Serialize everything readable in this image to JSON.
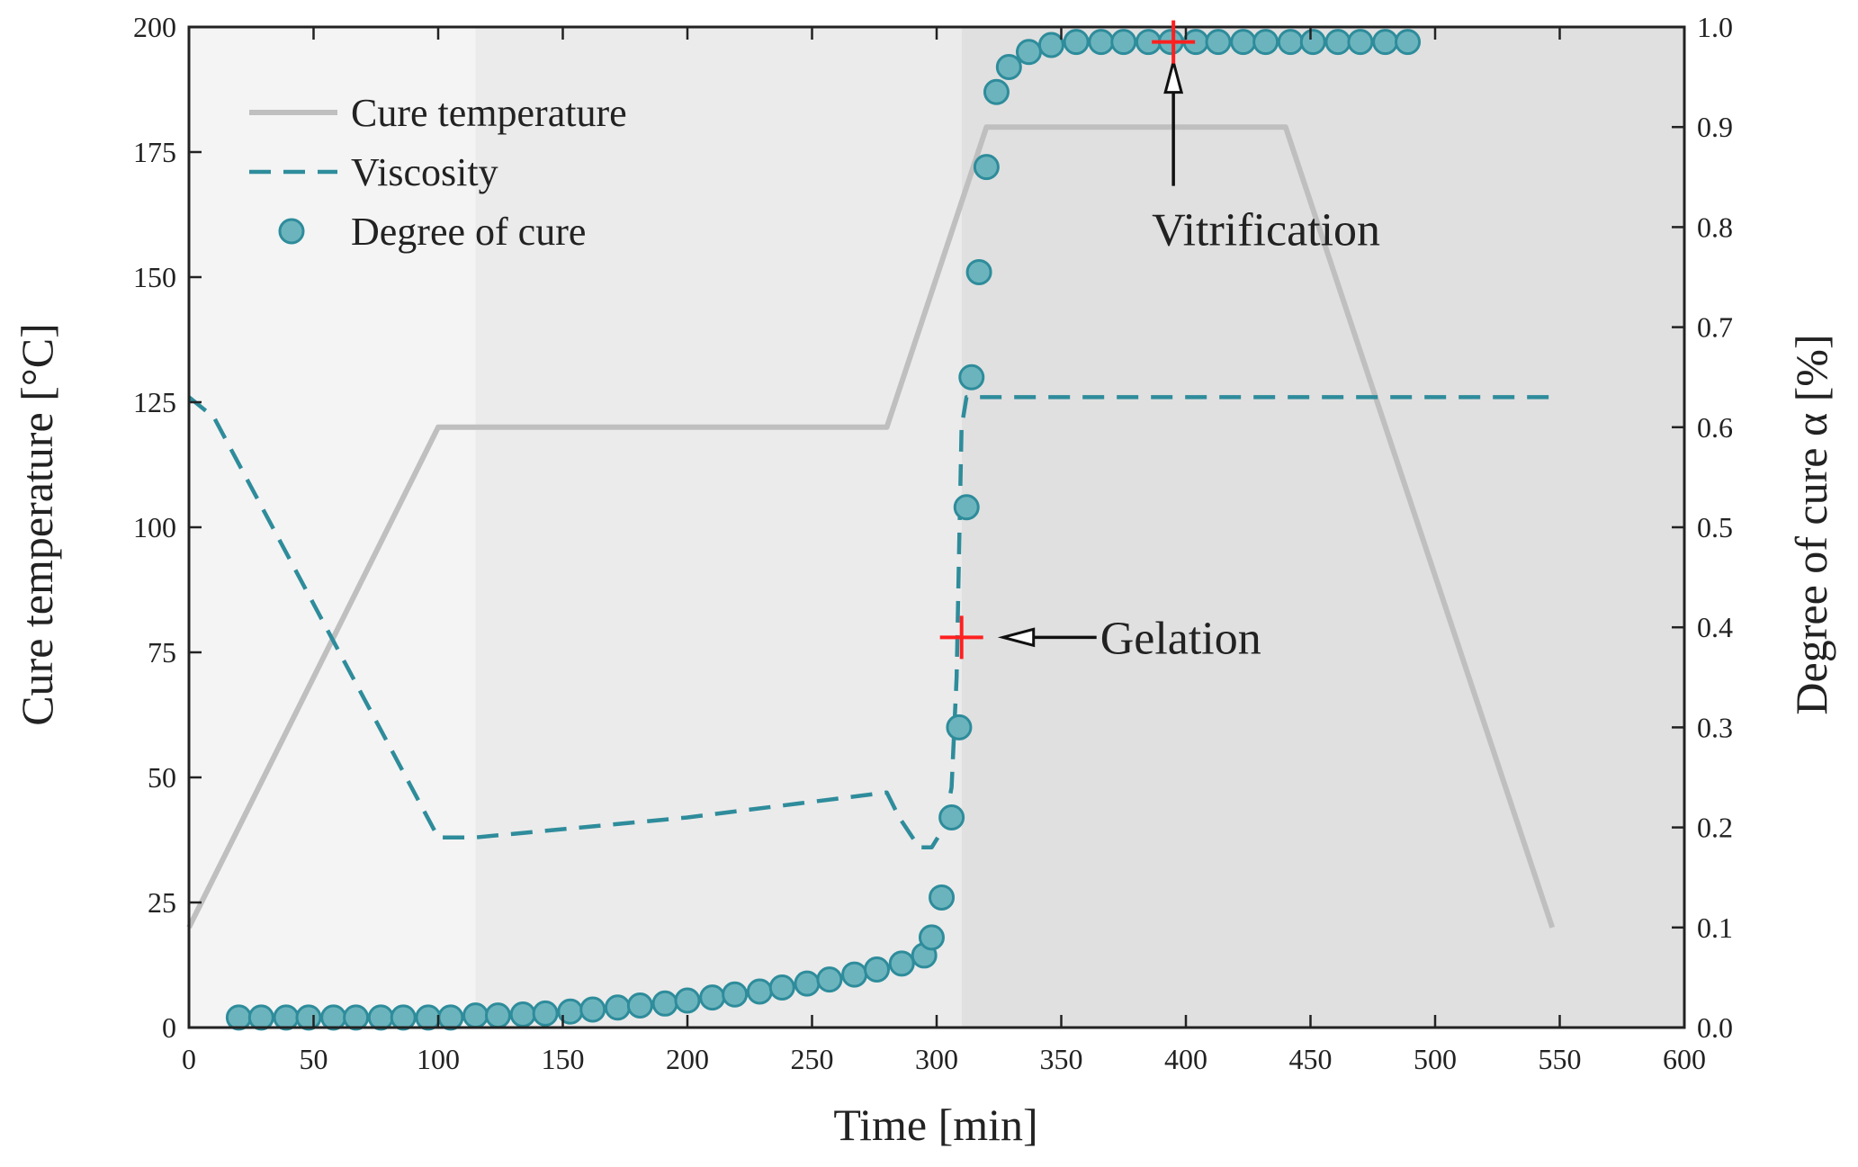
{
  "chart_data": {
    "type": "line",
    "title": "",
    "xlabel": "Time [min]",
    "ylabel_left": "Cure temperature [°C]",
    "ylabel_right": "Degree of cure α [%]",
    "xlim": [
      0,
      600
    ],
    "ylim_left": [
      0,
      200
    ],
    "ylim_right": [
      0.0,
      1.0
    ],
    "x_ticks": [
      "0",
      "50",
      "100",
      "150",
      "200",
      "250",
      "300",
      "350",
      "400",
      "450",
      "500",
      "550",
      "600"
    ],
    "y_left_ticks": [
      "0",
      "25",
      "50",
      "75",
      "100",
      "125",
      "150",
      "175",
      "200"
    ],
    "y_right_ticks": [
      "0.0",
      "0.1",
      "0.2",
      "0.3",
      "0.4",
      "0.5",
      "0.6",
      "0.7",
      "0.8",
      "0.9",
      "1.0"
    ],
    "grid": false,
    "legend_position": "top-left",
    "background_regions": [
      {
        "x_start": 0,
        "x_end": 115,
        "shade": "#f4f4f4"
      },
      {
        "x_start": 115,
        "x_end": 310,
        "shade": "#ebebeb"
      },
      {
        "x_start": 310,
        "x_end": 600,
        "shade": "#e0e0e0"
      }
    ],
    "series": [
      {
        "name": "Cure temperature",
        "style": "solid",
        "color": "#bfbfbf",
        "axis": "left",
        "x": [
          0,
          100,
          280,
          320,
          440,
          547
        ],
        "y": [
          20,
          120,
          120,
          180,
          180,
          20
        ]
      },
      {
        "name": "Viscosity",
        "style": "dashed",
        "color": "#2e8c9b",
        "axis": "left",
        "x": [
          0,
          10,
          100,
          115,
          200,
          280,
          285,
          293,
          298,
          303,
          306,
          308,
          309,
          310,
          312,
          320,
          548
        ],
        "y": [
          126,
          122,
          38,
          38,
          42,
          47,
          42,
          36,
          36,
          40,
          48,
          70,
          95,
          120,
          126,
          126,
          126
        ]
      },
      {
        "name": "Degree of cure",
        "style": "markers",
        "color": "#6cb4bd",
        "axis": "right",
        "x": [
          20,
          29,
          39,
          48,
          58,
          67,
          77,
          86,
          96,
          105,
          115,
          124,
          134,
          143,
          153,
          162,
          172,
          181,
          191,
          200,
          210,
          219,
          229,
          238,
          248,
          257,
          267,
          276,
          286,
          295,
          298,
          302,
          306,
          309,
          312,
          314,
          317,
          320,
          324,
          329,
          337,
          346,
          356,
          366,
          375,
          385,
          394,
          404,
          413,
          423,
          432,
          442,
          451,
          461,
          470,
          480,
          489
        ],
        "y": [
          0.01,
          0.01,
          0.01,
          0.01,
          0.01,
          0.01,
          0.01,
          0.01,
          0.01,
          0.01,
          0.012,
          0.012,
          0.013,
          0.014,
          0.016,
          0.018,
          0.02,
          0.022,
          0.024,
          0.027,
          0.03,
          0.033,
          0.036,
          0.04,
          0.044,
          0.048,
          0.053,
          0.058,
          0.064,
          0.072,
          0.09,
          0.13,
          0.21,
          0.3,
          0.52,
          0.65,
          0.755,
          0.86,
          0.935,
          0.96,
          0.975,
          0.982,
          0.985,
          0.985,
          0.985,
          0.985,
          0.985,
          0.985,
          0.985,
          0.985,
          0.985,
          0.985,
          0.985,
          0.985,
          0.985,
          0.985,
          0.985
        ]
      }
    ],
    "annotations": [
      {
        "label": "Gelation",
        "marker_x": 310,
        "marker_y_left": 78,
        "marker_color": "#ff2020",
        "arrow": "left-pointing"
      },
      {
        "label": "Vitrification",
        "marker_x": 395,
        "marker_y_right": 0.985,
        "marker_color": "#ff2020",
        "arrow": "up-pointing"
      }
    ]
  }
}
